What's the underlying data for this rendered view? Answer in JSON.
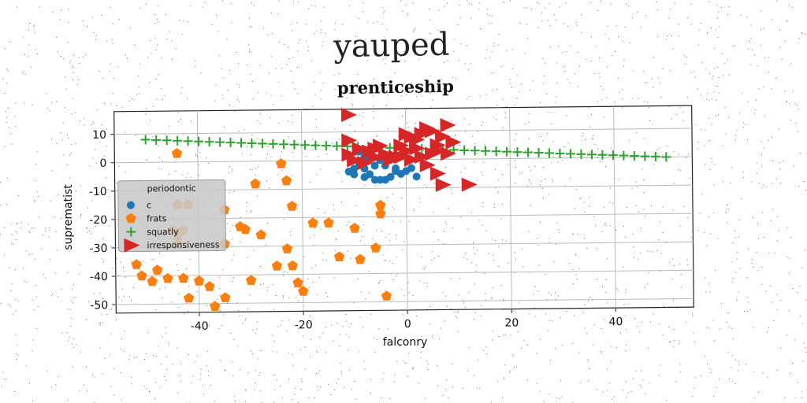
{
  "chart_data": {
    "type": "scatter",
    "suptitle": "yauped",
    "title": "prenticeship",
    "xlabel": "falconry",
    "ylabel": "suprematist",
    "xlim": [
      -56,
      55
    ],
    "ylim": [
      -53,
      18
    ],
    "xticks": [
      -40,
      -20,
      0,
      20,
      40
    ],
    "yticks": [
      10,
      0,
      -10,
      -20,
      -30,
      -40,
      -50
    ],
    "grid": true,
    "legend": {
      "title": "periodontic",
      "placement": "center-left"
    },
    "series": [
      {
        "name": "c",
        "color": "#1f77b4",
        "marker": "circle",
        "points": [
          [
            -9,
            3
          ],
          [
            -8,
            1
          ],
          [
            -9,
            -1
          ],
          [
            -10,
            -3
          ],
          [
            -11,
            -4
          ],
          [
            -10,
            -5
          ],
          [
            -8,
            -6
          ],
          [
            -7,
            -5
          ],
          [
            -6,
            -7
          ],
          [
            -5,
            -7
          ],
          [
            -4,
            -7
          ],
          [
            -3,
            -6
          ],
          [
            -2,
            -4
          ],
          [
            -1,
            -5
          ],
          [
            0,
            -4
          ],
          [
            1,
            -3
          ],
          [
            2,
            -6
          ],
          [
            -7,
            1
          ],
          [
            -6,
            -2
          ],
          [
            -3,
            0
          ],
          [
            -4,
            -2
          ],
          [
            -2,
            -3
          ],
          [
            -8,
            -3
          ],
          [
            -5,
            0
          ]
        ]
      },
      {
        "name": "frats",
        "color": "#ff7f0e",
        "marker": "pentagon",
        "points": [
          [
            -44,
            3
          ],
          [
            -24,
            -1
          ],
          [
            -23,
            -7
          ],
          [
            -22,
            -16
          ],
          [
            -29,
            -8
          ],
          [
            -44,
            -15
          ],
          [
            -42,
            -15
          ],
          [
            -35,
            -17
          ],
          [
            -32,
            -23
          ],
          [
            -31,
            -24
          ],
          [
            -28,
            -26
          ],
          [
            -18,
            -22
          ],
          [
            -15,
            -22
          ],
          [
            -10,
            -24
          ],
          [
            -5,
            -16
          ],
          [
            -5,
            -19
          ],
          [
            -6,
            -31
          ],
          [
            -45,
            -24
          ],
          [
            -43,
            -24
          ],
          [
            -44,
            -26
          ],
          [
            -44,
            -29
          ],
          [
            -35,
            -29
          ],
          [
            -23,
            -31
          ],
          [
            -25,
            -37
          ],
          [
            -22,
            -37
          ],
          [
            -13,
            -34
          ],
          [
            -9,
            -35
          ],
          [
            -52,
            -36
          ],
          [
            -51,
            -40
          ],
          [
            -49,
            -42
          ],
          [
            -48,
            -38
          ],
          [
            -46,
            -41
          ],
          [
            -43,
            -41
          ],
          [
            -40,
            -42
          ],
          [
            -38,
            -44
          ],
          [
            -35,
            -48
          ],
          [
            -30,
            -42
          ],
          [
            -21,
            -43
          ],
          [
            -20,
            -46
          ],
          [
            -42,
            -48
          ],
          [
            -37,
            -51
          ],
          [
            -4,
            -48
          ]
        ]
      },
      {
        "name": "squatly",
        "color": "#2ca02c",
        "marker": "plus",
        "line": {
          "x0": -50,
          "y0": 8,
          "x1": 50,
          "y1": 0,
          "count": 50
        }
      },
      {
        "name": "irresponsiveness",
        "color": "#d62728",
        "marker": "triangle-right",
        "points": [
          [
            -11,
            16
          ],
          [
            -11,
            7
          ],
          [
            -11,
            2
          ],
          [
            -9,
            4
          ],
          [
            -10,
            0
          ],
          [
            -8,
            -1
          ],
          [
            -6,
            1
          ],
          [
            -5,
            5
          ],
          [
            -4,
            2
          ],
          [
            -3,
            0
          ],
          [
            -2,
            1
          ],
          [
            -1,
            5
          ],
          [
            0,
            3
          ],
          [
            1,
            0
          ],
          [
            2,
            7
          ],
          [
            3,
            9
          ],
          [
            4,
            11
          ],
          [
            5,
            10
          ],
          [
            6,
            5
          ],
          [
            7,
            8
          ],
          [
            8,
            12
          ],
          [
            9,
            6
          ],
          [
            8,
            2
          ],
          [
            6,
            -5
          ],
          [
            7,
            -9
          ],
          [
            12,
            -9
          ],
          [
            4,
            -2
          ],
          [
            1,
            8
          ],
          [
            -1,
            1
          ],
          [
            2,
            4
          ],
          [
            5,
            2
          ],
          [
            -6,
            4
          ],
          [
            -7,
            3
          ],
          [
            3,
            1
          ],
          [
            0,
            9
          ],
          [
            6,
            3
          ]
        ]
      }
    ]
  }
}
